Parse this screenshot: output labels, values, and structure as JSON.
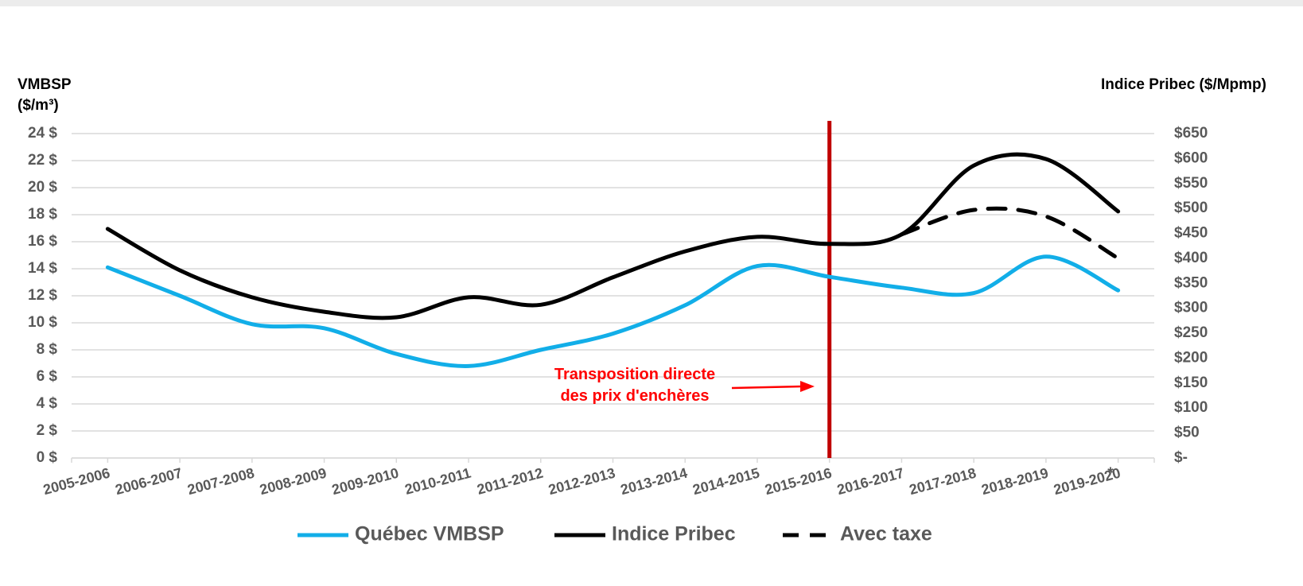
{
  "chart_data": {
    "type": "line",
    "ylabel": [
      "VMBSP",
      "($/m³)"
    ],
    "y2label": "Indice Pribec ($/Mpmp)",
    "categories": [
      "2005-2006",
      "2006-2007",
      "2007-2008",
      "2008-2009",
      "2009-2010",
      "2010-2011",
      "2011-2012",
      "2012-2013",
      "2013-2014",
      "2014-2015",
      "2015-2016",
      "2016-2017",
      "2017-2018",
      "2018-2019",
      "2019-2020"
    ],
    "series": [
      {
        "name": "Québec VMBSP",
        "color": "#12aee8",
        "dash": false,
        "axis": "y",
        "values": [
          14.1,
          12.0,
          9.9,
          9.6,
          7.7,
          6.8,
          8.0,
          9.2,
          11.3,
          14.2,
          13.4,
          12.6,
          12.2,
          14.9,
          12.4
        ]
      },
      {
        "name": "Indice Pribec",
        "color": "#000000",
        "dash": false,
        "axis": "y2",
        "values": [
          459,
          376,
          322,
          293,
          282,
          322,
          307,
          362,
          414,
          443,
          429,
          448,
          586,
          599,
          494
        ]
      },
      {
        "name": "Avec taxe",
        "color": "#000000",
        "dash": true,
        "axis": "y2",
        "values": [
          null,
          null,
          null,
          null,
          null,
          null,
          null,
          null,
          null,
          null,
          null,
          448,
          497,
          484,
          400
        ]
      }
    ],
    "ylim": [
      0,
      24
    ],
    "yticks": [
      {
        "value": 0,
        "label": "0 $"
      },
      {
        "value": 2,
        "label": "2 $"
      },
      {
        "value": 4,
        "label": "4 $"
      },
      {
        "value": 6,
        "label": "6 $"
      },
      {
        "value": 8,
        "label": "8 $"
      },
      {
        "value": 10,
        "label": "10 $"
      },
      {
        "value": 12,
        "label": "12 $"
      },
      {
        "value": 14,
        "label": "14 $"
      },
      {
        "value": 16,
        "label": "16 $"
      },
      {
        "value": 18,
        "label": "18 $"
      },
      {
        "value": 20,
        "label": "20 $"
      },
      {
        "value": 22,
        "label": "22 $"
      },
      {
        "value": 24,
        "label": "24 $"
      }
    ],
    "y2lim": [
      0,
      650
    ],
    "y2ticks": [
      {
        "value": 0,
        "label": "$-"
      },
      {
        "value": 50,
        "label": "$50"
      },
      {
        "value": 100,
        "label": "$100"
      },
      {
        "value": 150,
        "label": "$150"
      },
      {
        "value": 200,
        "label": "$200"
      },
      {
        "value": 250,
        "label": "$250"
      },
      {
        "value": 300,
        "label": "$300"
      },
      {
        "value": 350,
        "label": "$350"
      },
      {
        "value": 400,
        "label": "$400"
      },
      {
        "value": 450,
        "label": "$450"
      },
      {
        "value": 500,
        "label": "$500"
      },
      {
        "value": 550,
        "label": "$550"
      },
      {
        "value": 600,
        "label": "$600"
      },
      {
        "value": 650,
        "label": "$650"
      }
    ],
    "grid": true,
    "legend": "bottom",
    "vline": {
      "category": "2015-2016",
      "color": "#c00000"
    },
    "annotation": [
      "Transposition directe",
      "des prix d'enchères"
    ],
    "footnote_mark": "*"
  }
}
